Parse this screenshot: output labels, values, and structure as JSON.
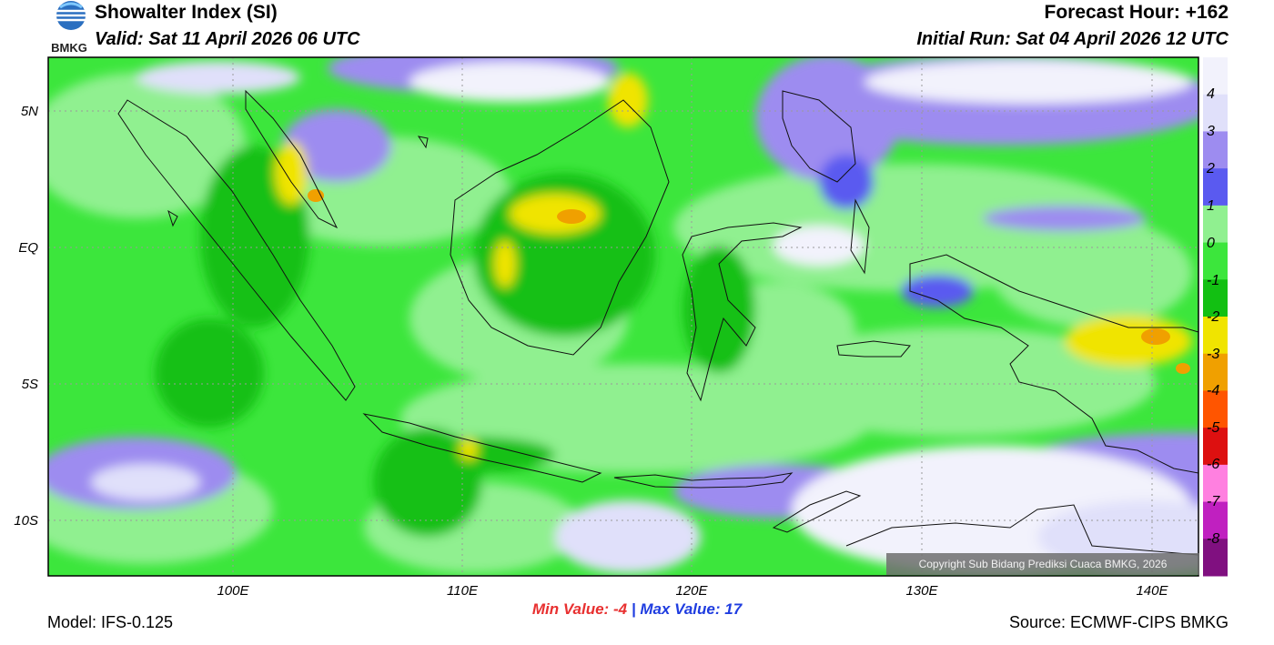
{
  "header": {
    "title": "Showalter Index (SI)",
    "valid": "Valid: Sat 11 April 2026 06 UTC",
    "forecast_hour": "Forecast Hour: +162",
    "initial_run": "Initial Run: Sat 04 April 2026 12 UTC"
  },
  "logo": {
    "text": "BMKG",
    "icon": "bmkg-logo"
  },
  "map": {
    "lat_labels": [
      "5N",
      "EQ",
      "5S",
      "10S"
    ],
    "lon_labels": [
      "100E",
      "110E",
      "120E",
      "130E",
      "140E"
    ],
    "copyright": "Copyright Sub Bidang Prediksi Cuaca BMKG, 2026"
  },
  "colorbar": {
    "labels": [
      "4",
      "3",
      "2",
      "1",
      "0",
      "-1",
      "-2",
      "-3",
      "-4",
      "-5",
      "-6",
      "-7",
      "-8"
    ],
    "colors": [
      "#f2f2fc",
      "#e0e0fa",
      "#9d8cf0",
      "#5a5af0",
      "#90f090",
      "#3ce63c",
      "#12c012",
      "#f0e400",
      "#f0a000",
      "#ff5500",
      "#dd1010",
      "#ff80e0",
      "#c020c0",
      "#801080"
    ]
  },
  "stats": {
    "min_label": "Min Value:",
    "min_value": "-4",
    "separator": "|",
    "max_label": "Max Value:",
    "max_value": "17"
  },
  "footer": {
    "model": "Model: IFS-0.125",
    "source": "Source: ECMWF-CIPS BMKG"
  }
}
